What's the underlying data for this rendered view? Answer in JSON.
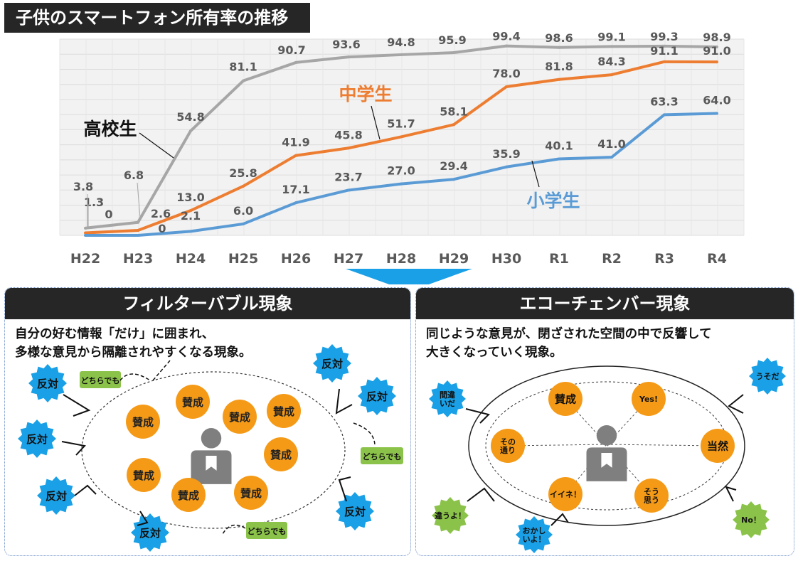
{
  "title": "子供のスマートフォン所有率の推移",
  "chart_data": {
    "type": "line",
    "categories": [
      "H22",
      "H23",
      "H24",
      "H25",
      "H26",
      "H27",
      "H28",
      "H29",
      "H30",
      "R1",
      "R2",
      "R3",
      "R4"
    ],
    "series": [
      {
        "name": "高校生",
        "color": "#a6a6a6",
        "values": [
          3.8,
          6.8,
          54.8,
          81.1,
          90.7,
          93.6,
          94.8,
          95.9,
          99.4,
          98.6,
          99.1,
          99.3,
          98.9
        ]
      },
      {
        "name": "中学生",
        "color": "#ed7d31",
        "values": [
          1.3,
          2.6,
          13.0,
          25.8,
          41.9,
          45.8,
          51.7,
          58.1,
          78.0,
          81.8,
          84.3,
          91.1,
          91.0
        ]
      },
      {
        "name": "小学生",
        "color": "#5b9bd5",
        "values": [
          0,
          0,
          2.1,
          6.0,
          17.1,
          23.7,
          27.0,
          29.4,
          35.9,
          40.1,
          41.0,
          63.3,
          64.0
        ]
      }
    ],
    "labels": [
      [
        "3.8",
        "6.8",
        "54.8",
        "81.1",
        "90.7",
        "93.6",
        "94.8",
        "95.9",
        "99.4",
        "98.6",
        "99.1",
        "99.3",
        "98.9"
      ],
      [
        "1.3",
        "2.6",
        "13.0",
        "25.8",
        "41.9",
        "45.8",
        "51.7",
        "58.1",
        "78.0",
        "81.8",
        "84.3",
        "91.1",
        "91.0"
      ],
      [
        "0",
        "0",
        "2.1",
        "6.0",
        "17.1",
        "23.7",
        "27.0",
        "29.4",
        "35.9",
        "40.1",
        "41.0",
        "63.3",
        "64.0"
      ]
    ],
    "ylim": [
      0,
      100
    ],
    "grid": true
  },
  "filter_bubble": {
    "heading": "フィルターバブル現象",
    "desc_line1": "自分の好む情報「だけ」に囲まれ、",
    "desc_line2": "多様な意見から隔離されやすくなる現象。",
    "agree": "賛成",
    "oppose": "反対",
    "either": "どちらでも"
  },
  "echo_chamber": {
    "heading": "エコーチェンバー現象",
    "desc_line1": "同じような意見が、閉ざされた空間の中で反響して",
    "desc_line2": "大きくなっていく現象。",
    "inner": [
      "賛成",
      "Yes!",
      "当然",
      "そう\n思う",
      "イイネ！",
      "その\n通り"
    ],
    "outer": [
      "間違\nいだ",
      "うそだ",
      "違うよ！",
      "おかし\nいよ！",
      "No！"
    ]
  },
  "colors": {
    "orange": "#f59a17",
    "blue": "#1aa0e6",
    "green": "#8bc34a",
    "gray": "#7f7f7f",
    "dark": "#262626"
  }
}
